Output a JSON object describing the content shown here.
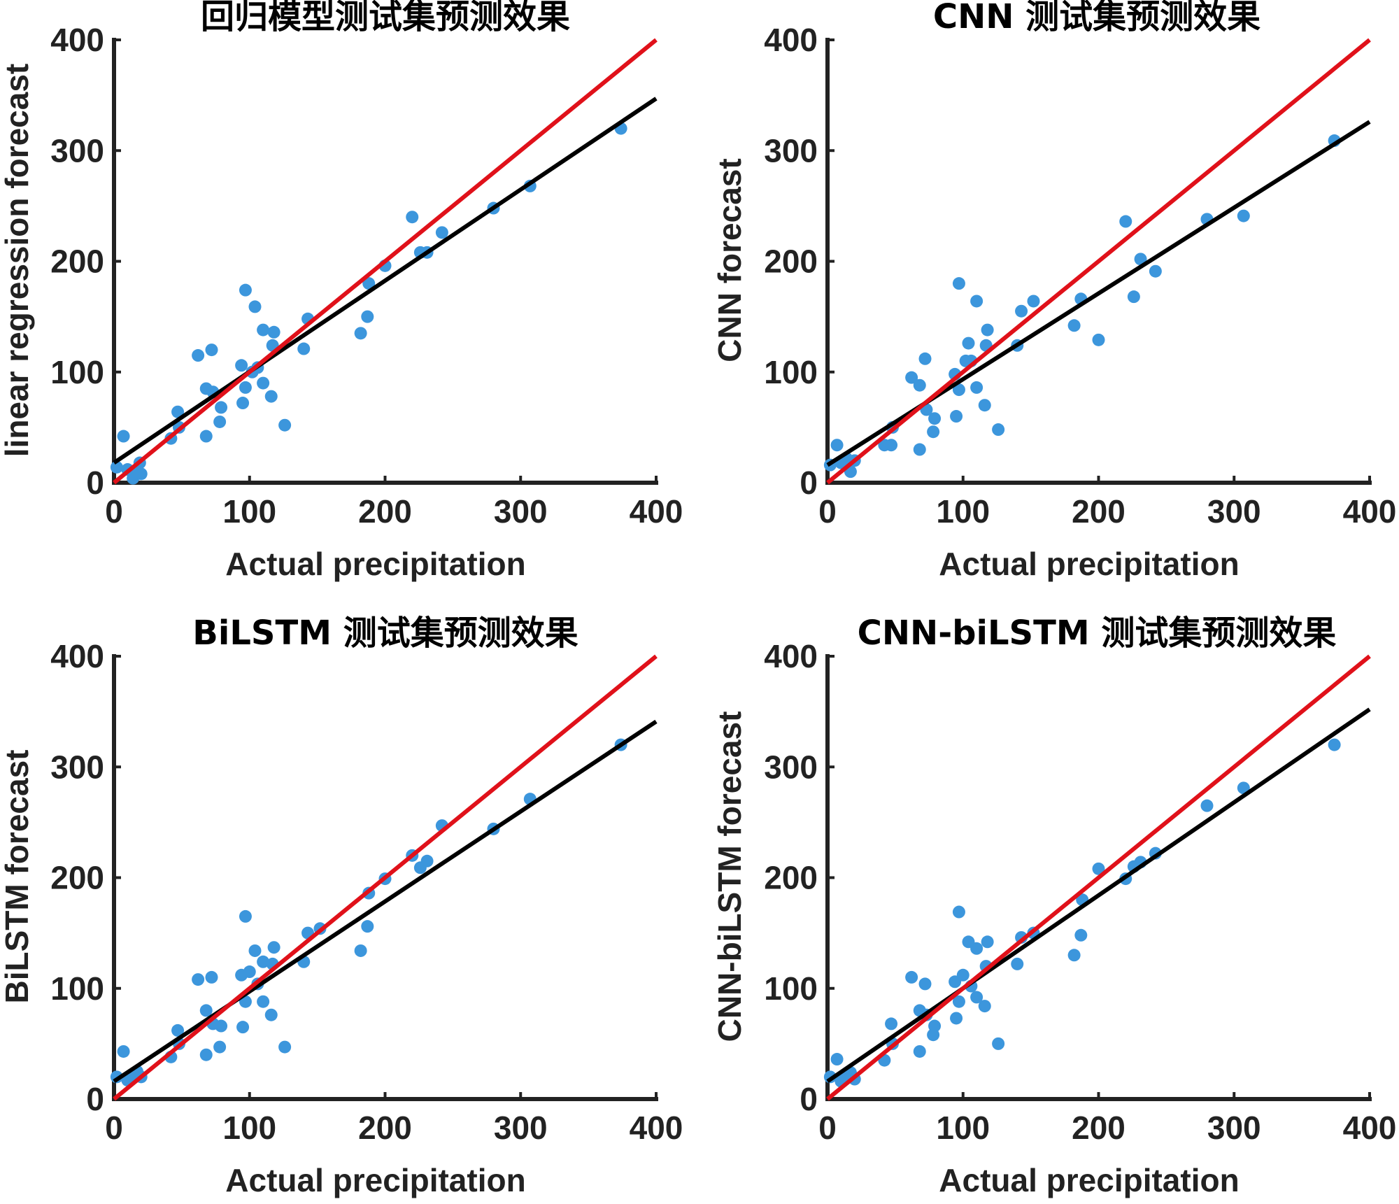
{
  "colors": {
    "points": "#3c96dc",
    "fit_line": "#000000",
    "identity_line": "#e0111a",
    "axis": "#222222"
  },
  "chart_data": [
    {
      "type": "scatter",
      "title": "回归模型测试集预测效果",
      "xlabel": "Actual  precipitation",
      "ylabel": "linear  regression  forecast",
      "xlim": [
        0,
        400
      ],
      "ylim": [
        0,
        400
      ],
      "xticks": [
        "0",
        "100",
        "200",
        "300",
        "400"
      ],
      "yticks": [
        "0",
        "100",
        "200",
        "300",
        "400"
      ],
      "identity_line": [
        [
          0,
          0
        ],
        [
          400,
          400
        ]
      ],
      "fit_line": [
        [
          0,
          18
        ],
        [
          400,
          347
        ]
      ],
      "points": [
        [
          2,
          14
        ],
        [
          7,
          42
        ],
        [
          10,
          12
        ],
        [
          14,
          4
        ],
        [
          17,
          8
        ],
        [
          19,
          18
        ],
        [
          20,
          8
        ],
        [
          42,
          40
        ],
        [
          47,
          64
        ],
        [
          48,
          50
        ],
        [
          62,
          115
        ],
        [
          68,
          42
        ],
        [
          68,
          85
        ],
        [
          72,
          120
        ],
        [
          73,
          82
        ],
        [
          78,
          55
        ],
        [
          79,
          68
        ],
        [
          94,
          106
        ],
        [
          95,
          72
        ],
        [
          97,
          174
        ],
        [
          97,
          86
        ],
        [
          102,
          100
        ],
        [
          104,
          159
        ],
        [
          106,
          104
        ],
        [
          110,
          90
        ],
        [
          110,
          138
        ],
        [
          116,
          78
        ],
        [
          117,
          124
        ],
        [
          118,
          136
        ],
        [
          126,
          52
        ],
        [
          140,
          121
        ],
        [
          143,
          148
        ],
        [
          182,
          135
        ],
        [
          187,
          150
        ],
        [
          188,
          180
        ],
        [
          200,
          196
        ],
        [
          220,
          240
        ],
        [
          226,
          208
        ],
        [
          231,
          208
        ],
        [
          242,
          226
        ],
        [
          280,
          248
        ],
        [
          307,
          268
        ],
        [
          374,
          320
        ]
      ]
    },
    {
      "type": "scatter",
      "title": "CNN  测试集预测效果",
      "xlabel": "Actual  precipitation",
      "ylabel": "CNN  forecast",
      "xlim": [
        0,
        400
      ],
      "ylim": [
        0,
        400
      ],
      "xticks": [
        "0",
        "100",
        "200",
        "300",
        "400"
      ],
      "yticks": [
        "0",
        "100",
        "200",
        "300",
        "400"
      ],
      "identity_line": [
        [
          0,
          0
        ],
        [
          400,
          400
        ]
      ],
      "fit_line": [
        [
          0,
          16
        ],
        [
          400,
          326
        ]
      ],
      "points": [
        [
          2,
          16
        ],
        [
          7,
          34
        ],
        [
          10,
          18
        ],
        [
          14,
          22
        ],
        [
          17,
          10
        ],
        [
          20,
          20
        ],
        [
          42,
          34
        ],
        [
          47,
          34
        ],
        [
          48,
          50
        ],
        [
          62,
          95
        ],
        [
          68,
          30
        ],
        [
          68,
          88
        ],
        [
          72,
          112
        ],
        [
          73,
          66
        ],
        [
          78,
          46
        ],
        [
          79,
          58
        ],
        [
          94,
          98
        ],
        [
          95,
          60
        ],
        [
          97,
          180
        ],
        [
          97,
          84
        ],
        [
          102,
          110
        ],
        [
          104,
          126
        ],
        [
          106,
          110
        ],
        [
          110,
          86
        ],
        [
          110,
          164
        ],
        [
          116,
          70
        ],
        [
          117,
          124
        ],
        [
          118,
          138
        ],
        [
          126,
          48
        ],
        [
          140,
          124
        ],
        [
          143,
          155
        ],
        [
          152,
          164
        ],
        [
          182,
          142
        ],
        [
          187,
          166
        ],
        [
          200,
          129
        ],
        [
          220,
          236
        ],
        [
          226,
          168
        ],
        [
          231,
          202
        ],
        [
          242,
          191
        ],
        [
          280,
          238
        ],
        [
          307,
          241
        ],
        [
          374,
          309
        ]
      ]
    },
    {
      "type": "scatter",
      "title": "BiLSTM  测试集预测效果",
      "xlabel": "Actual  precipitation",
      "ylabel": "BiLSTM  forecast",
      "xlim": [
        0,
        400
      ],
      "ylim": [
        0,
        400
      ],
      "xticks": [
        "0",
        "100",
        "200",
        "300",
        "400"
      ],
      "yticks": [
        "0",
        "100",
        "200",
        "300",
        "400"
      ],
      "identity_line": [
        [
          0,
          0
        ],
        [
          400,
          400
        ]
      ],
      "fit_line": [
        [
          0,
          16
        ],
        [
          400,
          341
        ]
      ],
      "points": [
        [
          2,
          20
        ],
        [
          7,
          43
        ],
        [
          10,
          17
        ],
        [
          14,
          22
        ],
        [
          17,
          25
        ],
        [
          20,
          20
        ],
        [
          42,
          38
        ],
        [
          47,
          62
        ],
        [
          48,
          50
        ],
        [
          62,
          108
        ],
        [
          68,
          40
        ],
        [
          68,
          80
        ],
        [
          72,
          110
        ],
        [
          73,
          68
        ],
        [
          78,
          47
        ],
        [
          79,
          66
        ],
        [
          94,
          112
        ],
        [
          95,
          65
        ],
        [
          97,
          165
        ],
        [
          97,
          88
        ],
        [
          100,
          115
        ],
        [
          104,
          134
        ],
        [
          106,
          104
        ],
        [
          110,
          88
        ],
        [
          110,
          124
        ],
        [
          116,
          76
        ],
        [
          117,
          122
        ],
        [
          118,
          137
        ],
        [
          126,
          47
        ],
        [
          140,
          124
        ],
        [
          143,
          150
        ],
        [
          152,
          154
        ],
        [
          182,
          134
        ],
        [
          187,
          156
        ],
        [
          188,
          186
        ],
        [
          200,
          199
        ],
        [
          220,
          220
        ],
        [
          226,
          209
        ],
        [
          231,
          215
        ],
        [
          242,
          247
        ],
        [
          280,
          244
        ],
        [
          307,
          271
        ],
        [
          374,
          320
        ]
      ]
    },
    {
      "type": "scatter",
      "title": "CNN-biLSTM  测试集预测效果",
      "xlabel": "Actual  precipitation",
      "ylabel": "CNN-biLSTM  forecast",
      "xlim": [
        0,
        400
      ],
      "ylim": [
        0,
        400
      ],
      "xticks": [
        "0",
        "100",
        "200",
        "300",
        "400"
      ],
      "yticks": [
        "0",
        "100",
        "200",
        "300",
        "400"
      ],
      "identity_line": [
        [
          0,
          0
        ],
        [
          400,
          400
        ]
      ],
      "fit_line": [
        [
          0,
          16
        ],
        [
          400,
          352
        ]
      ],
      "points": [
        [
          2,
          20
        ],
        [
          7,
          36
        ],
        [
          10,
          16
        ],
        [
          14,
          22
        ],
        [
          17,
          24
        ],
        [
          20,
          18
        ],
        [
          42,
          35
        ],
        [
          47,
          68
        ],
        [
          48,
          50
        ],
        [
          62,
          110
        ],
        [
          68,
          43
        ],
        [
          68,
          80
        ],
        [
          72,
          104
        ],
        [
          73,
          76
        ],
        [
          78,
          58
        ],
        [
          79,
          66
        ],
        [
          94,
          106
        ],
        [
          95,
          73
        ],
        [
          97,
          169
        ],
        [
          97,
          88
        ],
        [
          100,
          112
        ],
        [
          104,
          142
        ],
        [
          106,
          102
        ],
        [
          110,
          92
        ],
        [
          110,
          136
        ],
        [
          116,
          84
        ],
        [
          117,
          120
        ],
        [
          118,
          142
        ],
        [
          126,
          50
        ],
        [
          140,
          122
        ],
        [
          143,
          146
        ],
        [
          152,
          150
        ],
        [
          182,
          130
        ],
        [
          187,
          148
        ],
        [
          188,
          180
        ],
        [
          200,
          208
        ],
        [
          220,
          199
        ],
        [
          226,
          210
        ],
        [
          231,
          214
        ],
        [
          242,
          222
        ],
        [
          280,
          265
        ],
        [
          307,
          281
        ],
        [
          374,
          320
        ]
      ]
    }
  ]
}
